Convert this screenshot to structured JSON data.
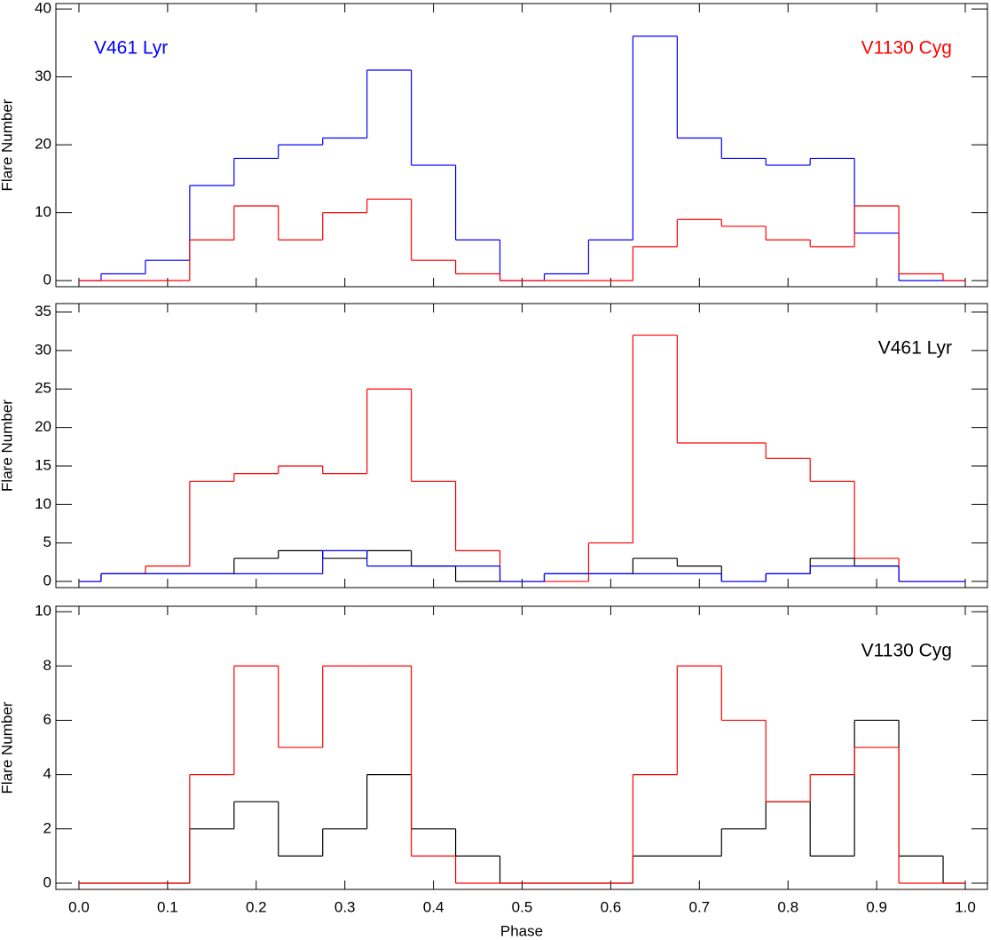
{
  "chart_data": [
    {
      "type": "step",
      "ylabel": "Flare Number",
      "x": [
        0,
        0.05,
        0.1,
        0.15,
        0.2,
        0.25,
        0.3,
        0.35,
        0.4,
        0.45,
        0.5,
        0.55,
        0.6,
        0.65,
        0.7,
        0.75,
        0.8,
        0.85,
        0.9,
        0.95,
        1.0
      ],
      "series": [
        {
          "color": "#0000ff",
          "values": [
            0,
            1,
            3,
            14,
            18,
            20,
            21,
            31,
            17,
            6,
            0,
            1,
            6,
            36,
            21,
            18,
            17,
            18,
            7,
            0,
            0
          ]
        },
        {
          "color": "#ff0000",
          "values": [
            0,
            0,
            0,
            6,
            11,
            6,
            10,
            12,
            3,
            1,
            0,
            0,
            0,
            5,
            9,
            8,
            6,
            5,
            11,
            1,
            0
          ]
        }
      ],
      "annotations": [
        {
          "text": "V461 Lyr",
          "color": "#0000ff",
          "corner": "top-left"
        },
        {
          "text": "V1130 Cyg",
          "color": "#ff0000",
          "corner": "top-right"
        }
      ],
      "xlim": [
        -0.026,
        1.025
      ],
      "xticks": [
        0,
        0.1,
        0.2,
        0.3,
        0.4,
        0.5,
        0.6,
        0.7,
        0.8,
        0.9,
        1
      ],
      "ylim": [
        -0.9,
        40.8
      ],
      "yticks": [
        0,
        10,
        20,
        30,
        40
      ]
    },
    {
      "type": "step",
      "ylabel": "Flare Number",
      "x": [
        0,
        0.05,
        0.1,
        0.15,
        0.2,
        0.25,
        0.3,
        0.35,
        0.4,
        0.45,
        0.5,
        0.55,
        0.6,
        0.65,
        0.7,
        0.75,
        0.8,
        0.85,
        0.9,
        0.95,
        1.0
      ],
      "series": [
        {
          "color": "#ff0000",
          "values": [
            0,
            1,
            2,
            13,
            14,
            15,
            14,
            25,
            13,
            4,
            0,
            0,
            5,
            32,
            18,
            18,
            16,
            13,
            3,
            0,
            0
          ]
        },
        {
          "color": "#000000",
          "values": [
            0,
            1,
            1,
            1,
            3,
            4,
            3,
            4,
            2,
            0,
            0,
            1,
            1,
            3,
            2,
            0,
            1,
            3,
            2,
            0,
            0
          ]
        },
        {
          "color": "#0000ff",
          "values": [
            0,
            1,
            1,
            1,
            1,
            1,
            4,
            2,
            2,
            2,
            0,
            1,
            1,
            1,
            1,
            0,
            1,
            2,
            2,
            0,
            0
          ]
        }
      ],
      "annotations": [
        {
          "text": "V461 Lyr",
          "color": "#000000",
          "corner": "top-right"
        }
      ],
      "xlim": [
        -0.026,
        1.025
      ],
      "xticks": [
        0,
        0.1,
        0.2,
        0.3,
        0.4,
        0.5,
        0.6,
        0.7,
        0.8,
        0.9,
        1
      ],
      "ylim": [
        -0.8,
        36.1
      ],
      "yticks": [
        0,
        5,
        10,
        15,
        20,
        25,
        30,
        35
      ]
    },
    {
      "type": "step",
      "ylabel": "Flare Number",
      "xlabel": "Phase",
      "x": [
        0,
        0.05,
        0.1,
        0.15,
        0.2,
        0.25,
        0.3,
        0.35,
        0.4,
        0.45,
        0.5,
        0.55,
        0.6,
        0.65,
        0.7,
        0.75,
        0.8,
        0.85,
        0.9,
        0.95,
        1.0
      ],
      "series": [
        {
          "color": "#000000",
          "values": [
            0,
            0,
            0,
            2,
            3,
            1,
            2,
            4,
            2,
            1,
            0,
            0,
            0,
            1,
            1,
            2,
            3,
            1,
            6,
            1,
            0
          ]
        },
        {
          "color": "#ff0000",
          "values": [
            0,
            0,
            0,
            4,
            8,
            5,
            8,
            8,
            1,
            0,
            0,
            0,
            0,
            4,
            8,
            6,
            3,
            4,
            5,
            0,
            0
          ]
        }
      ],
      "annotations": [
        {
          "text": "V1130 Cyg",
          "color": "#000000",
          "corner": "top-right"
        }
      ],
      "xlim": [
        -0.026,
        1.025
      ],
      "xticks": [
        {
          "value": 0,
          "label": "0.0"
        },
        {
          "value": 0.1,
          "label": "0.1"
        },
        {
          "value": 0.2,
          "label": "0.2"
        },
        {
          "value": 0.3,
          "label": "0.3"
        },
        {
          "value": 0.4,
          "label": "0.4"
        },
        {
          "value": 0.5,
          "label": "0.5"
        },
        {
          "value": 0.6,
          "label": "0.6"
        },
        {
          "value": 0.7,
          "label": "0.7"
        },
        {
          "value": 0.8,
          "label": "0.8"
        },
        {
          "value": 0.9,
          "label": "0.9"
        },
        {
          "value": 1,
          "label": "1.0"
        }
      ],
      "ylim": [
        -0.23,
        10.2
      ],
      "yticks": [
        0,
        2,
        4,
        6,
        8,
        10
      ]
    }
  ]
}
